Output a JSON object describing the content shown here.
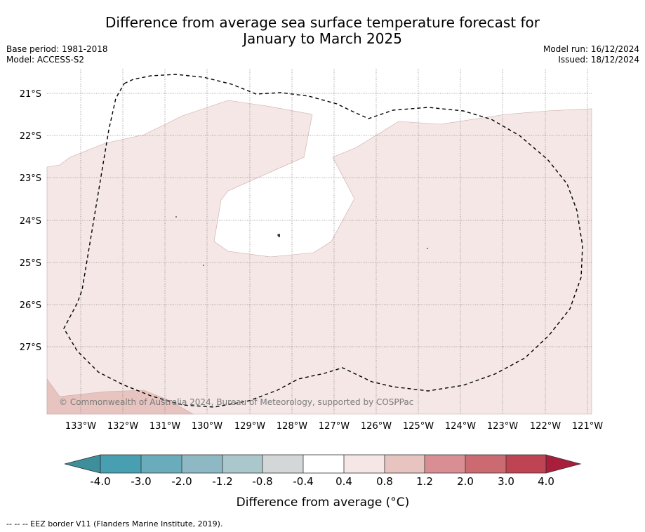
{
  "title_line1": "Difference from average sea surface temperature forecast for",
  "title_line2": "January to March 2025",
  "base_period": "Base period: 1981-2018",
  "model": "Model: ACCESS-S2",
  "model_run": "Model run: 16/12/2024",
  "issued": "Issued: 18/12/2024",
  "copyright": "© Commonwealth of Australia 2024, Bureau of Meteorology, supported by COSPPac",
  "lon_ticks": [
    "133°W",
    "132°W",
    "131°W",
    "130°W",
    "129°W",
    "128°W",
    "127°W",
    "126°W",
    "125°W",
    "124°W",
    "123°W",
    "122°W",
    "121°W"
  ],
  "lat_ticks": [
    "21°S",
    "22°S",
    "23°S",
    "24°S",
    "25°S",
    "26°S",
    "27°S"
  ],
  "colorbar": {
    "label": "Difference from average (°C)",
    "ticks": [
      "-4.0",
      "-3.0",
      "-2.0",
      "-1.2",
      "-0.8",
      "-0.4",
      "0.4",
      "0.8",
      "1.2",
      "2.0",
      "3.0",
      "4.0"
    ],
    "colors": [
      "#3e8f9c",
      "#479fb1",
      "#6aacbb",
      "#8db8c4",
      "#aac7cc",
      "#d3d7d8",
      "#ffffff",
      "#f5e7e6",
      "#e7c4bf",
      "#d98e93",
      "#cb6a70",
      "#be4454",
      "#a81e3c"
    ]
  },
  "footnote": "--  --  -- EEZ border V11 (Flanders Marine Institute, 2019).",
  "colors": {
    "anomaly_04_08": "#f5e7e6",
    "anomaly_08_12": "#e7c4bf",
    "neutral": "#ffffff"
  }
}
